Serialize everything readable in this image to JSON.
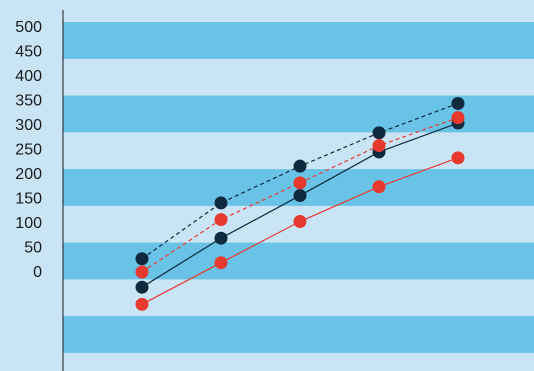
{
  "chart_data": {
    "type": "line",
    "title": "",
    "xlabel": "",
    "ylabel": "",
    "x": [
      1,
      2,
      3,
      4,
      5
    ],
    "ylim": [
      -151,
      510
    ],
    "yticks": [
      500,
      450,
      400,
      350,
      300,
      250,
      200,
      150,
      100,
      50,
      0
    ],
    "grid": "horizontal bands",
    "colors": {
      "background": "#c9e4f5",
      "band": "#69c3e6",
      "navy": "#0f2a3f",
      "red": "#e8392f"
    },
    "series": [
      {
        "style": "dashed",
        "color": "#0f2a3f",
        "values": [
          27,
          141,
          216,
          284,
          344
        ]
      },
      {
        "style": "solid",
        "color": "#0f2a3f",
        "values": [
          -31,
          69,
          156,
          245,
          304
        ]
      },
      {
        "style": "dashed",
        "color": "#e8392f",
        "values": [
          0,
          107,
          182,
          258,
          315
        ]
      },
      {
        "style": "solid",
        "color": "#e8392f",
        "values": [
          -66,
          19,
          103,
          174,
          233
        ]
      }
    ]
  }
}
